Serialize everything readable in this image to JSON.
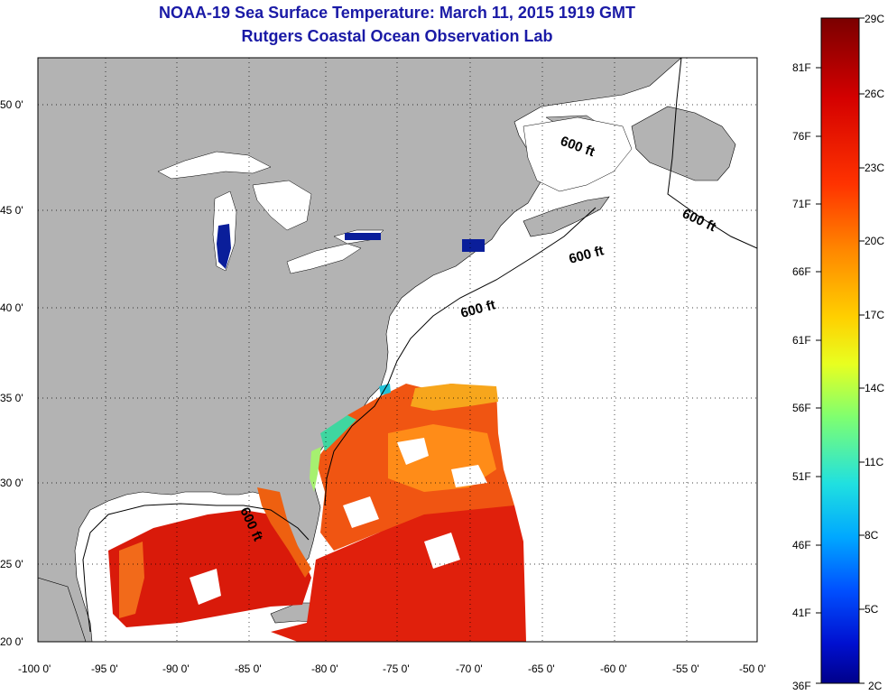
{
  "header": {
    "title": "NOAA-19 Sea Surface Temperature:  March 11, 2015 1919 GMT",
    "subtitle": "Rutgers Coastal Ocean Observation Lab"
  },
  "map": {
    "lon_labels": [
      "-100 0'",
      "-95 0'",
      "-90 0'",
      "-85 0'",
      "-80 0'",
      "-75 0'",
      "-70 0'",
      "-65 0'",
      "-60 0'",
      "-55 0'",
      "-50 0'"
    ],
    "lat_labels": [
      "50 0'",
      "45 0'",
      "40 0'",
      "35 0'",
      "30 0'",
      "25 0'",
      "20 0'"
    ],
    "contour_labels": [
      "600 ft",
      "600 ft",
      "600 ft",
      "600 ft",
      "600 ft"
    ],
    "colors": {
      "land": "#b3b3b3",
      "water_nodata": "#ffffff",
      "grid": "#000000"
    }
  },
  "colorbar": {
    "celsius_labels": [
      "29C",
      "26C",
      "23C",
      "20C",
      "17C",
      "14C",
      "11C",
      "8C",
      "5C",
      "2C"
    ],
    "fahrenheit_labels": [
      "81F",
      "76F",
      "71F",
      "66F",
      "61F",
      "56F",
      "51F",
      "46F",
      "41F",
      "36F"
    ],
    "gradient": [
      "#7a0000",
      "#d40000",
      "#ff3300",
      "#ff8800",
      "#ffd000",
      "#e8ff20",
      "#7fff70",
      "#20e0e0",
      "#00a8ff",
      "#0050ff",
      "#0010d0",
      "#00008a"
    ]
  }
}
